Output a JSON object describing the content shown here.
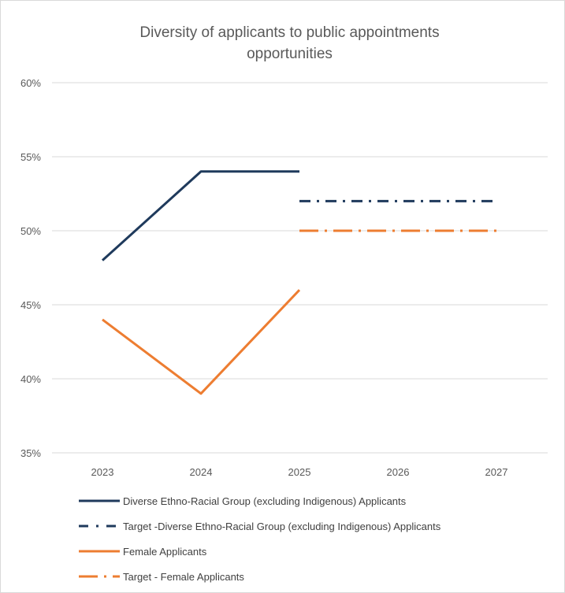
{
  "chart_data": {
    "type": "line",
    "title_line1": "Diversity of applicants to public appointments",
    "title_line2": "opportunities",
    "x": [
      "2023",
      "2024",
      "2025",
      "2026",
      "2027"
    ],
    "y_ticks": [
      "60%",
      "55%",
      "50%",
      "45%",
      "40%",
      "35%"
    ],
    "ylim": [
      35,
      60
    ],
    "y_unit": "percent",
    "grid": true,
    "legend_position": "bottom",
    "series": [
      {
        "name": "Diverse Ethno-Racial Group (excluding Indigenous) Applicants",
        "color": "#1f3a5c",
        "style": "solid",
        "values": [
          48,
          54,
          54,
          null,
          null
        ]
      },
      {
        "name": "Target -Diverse Ethno-Racial Group (excluding Indigenous) Applicants",
        "color": "#1f3a5c",
        "style": "dash-dot",
        "values": [
          null,
          null,
          52,
          52,
          52
        ]
      },
      {
        "name": "Female Applicants",
        "color": "#ed7d31",
        "style": "solid",
        "values": [
          44,
          39,
          46,
          null,
          null
        ]
      },
      {
        "name": "Target - Female Applicants",
        "color": "#ed7d31",
        "style": "long-dash-dot",
        "values": [
          null,
          null,
          50,
          50,
          50
        ]
      }
    ]
  }
}
